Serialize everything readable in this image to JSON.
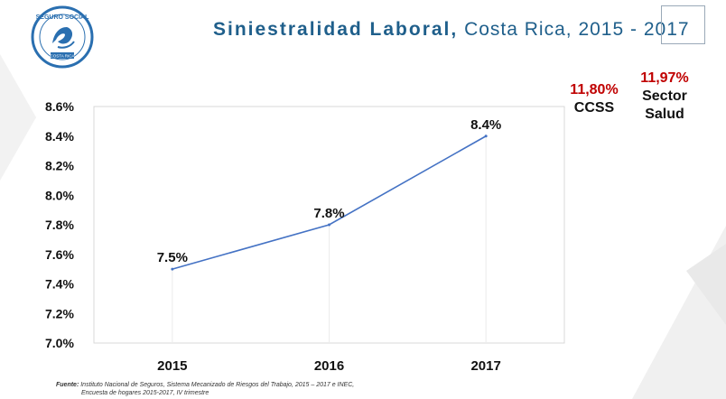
{
  "header": {
    "logo_text_top": "SEGURO SOCIAL",
    "logo_text_bottom": "COSTA RICA",
    "title_bold": "Siniestralidad Laboral,",
    "title_rest": "Costa Rica, 2015 - 2017"
  },
  "stats": {
    "ccss": {
      "value": "11,80%",
      "label": "CCSS"
    },
    "salud": {
      "value": "11,97%",
      "label": "Sector Salud"
    }
  },
  "colors": {
    "title": "#1f5f8b",
    "line": "#4472c4",
    "highlight": "#c00000",
    "logo": "#2a6fb0"
  },
  "chart_data": {
    "type": "line",
    "categories": [
      "2015",
      "2016",
      "2017"
    ],
    "series": [
      {
        "values": [
          7.5,
          7.8,
          8.4
        ]
      }
    ],
    "data_labels": [
      "7.5%",
      "7.8%",
      "8.4%"
    ],
    "y_ticks": [
      "7.0%",
      "7.2%",
      "7.4%",
      "7.6%",
      "7.8%",
      "8.0%",
      "8.2%",
      "8.4%",
      "8.6%"
    ],
    "ylim": [
      7.0,
      8.6
    ],
    "grid": false,
    "title": "",
    "xlabel": "",
    "ylabel": ""
  },
  "source": {
    "label": "Fuente:",
    "line1": "Instituto Nacional de Seguros, Sistema Mecanizado de Riesgos del Trabajo, 2015 – 2017 e INEC,",
    "line2": "Encuesta de hogares 2015-2017, IV trimestre"
  }
}
